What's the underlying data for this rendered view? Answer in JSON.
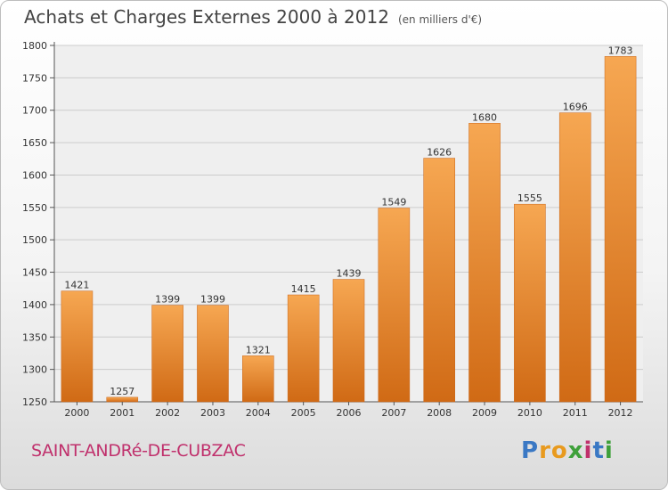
{
  "header": {
    "title": "Achats et Charges Externes 2000 à 2012",
    "unit": "(en milliers d'€)"
  },
  "footer": {
    "city": "SAINT-ANDRé-DE-CUBZAC",
    "logo_letters": [
      "P",
      "r",
      "o",
      "x",
      "i",
      "t",
      "i"
    ]
  },
  "colors": {
    "bar_light": "#f6a752",
    "bar_dark": "#d06a15",
    "grid": "#cccccc"
  },
  "chart_data": {
    "type": "bar",
    "categories": [
      "2000",
      "2001",
      "2002",
      "2003",
      "2004",
      "2005",
      "2006",
      "2007",
      "2008",
      "2009",
      "2010",
      "2011",
      "2012"
    ],
    "values": [
      1421,
      1257,
      1399,
      1399,
      1321,
      1415,
      1439,
      1549,
      1626,
      1680,
      1555,
      1696,
      1783
    ],
    "title": "Achats et Charges Externes 2000 à 2012",
    "xlabel": "",
    "ylabel": "",
    "ylim": [
      1250,
      1800
    ],
    "yticks": [
      1250,
      1300,
      1350,
      1400,
      1450,
      1500,
      1550,
      1600,
      1650,
      1700,
      1750,
      1800
    ],
    "grid": true
  }
}
